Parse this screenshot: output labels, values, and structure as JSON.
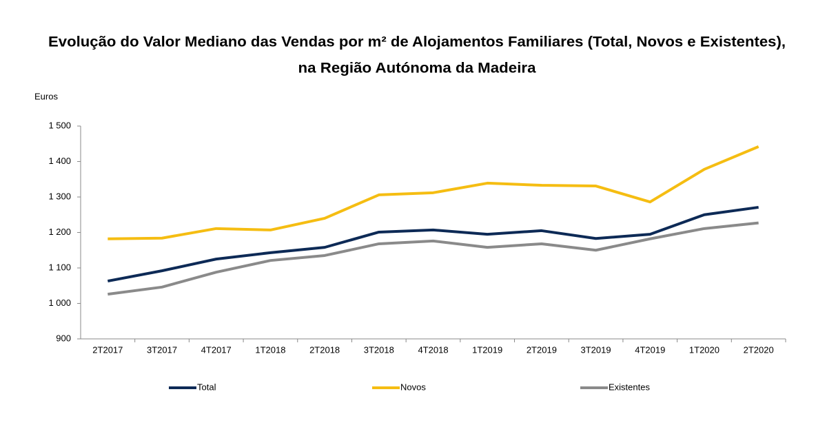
{
  "chart_data": {
    "type": "line",
    "title": [
      "Evolução do Valor Mediano das Vendas por m² de Alojamentos Familiares (Total, Novos e Existentes),",
      "na Região Autónoma da Madeira"
    ],
    "y_label": "Euros",
    "categories": [
      "2T2017",
      "3T2017",
      "4T2017",
      "1T2018",
      "2T2018",
      "3T2018",
      "4T2018",
      "1T2019",
      "2T2019",
      "3T2019",
      "4T2019",
      "1T2020",
      "2T2020"
    ],
    "series": [
      {
        "name": "Total",
        "color": "#0d2a56",
        "values": [
          1063,
          1092,
          1125,
          1143,
          1158,
          1201,
          1207,
          1195,
          1205,
          1183,
          1195,
          1250,
          1271
        ]
      },
      {
        "name": "Novos",
        "color": "#f5bd12",
        "values": [
          1182,
          1184,
          1211,
          1207,
          1240,
          1306,
          1312,
          1339,
          1333,
          1331,
          1286,
          1378,
          1442
        ]
      },
      {
        "name": "Existentes",
        "color": "#8a8a8a",
        "values": [
          1026,
          1046,
          1088,
          1121,
          1135,
          1168,
          1176,
          1158,
          1168,
          1150,
          1182,
          1211,
          1227
        ]
      }
    ],
    "ylim": [
      900,
      1500
    ],
    "yticks": [
      900,
      {
        "value": 1000,
        "label": "1 000"
      },
      {
        "value": 1100,
        "label": "1 100"
      },
      {
        "value": 1200,
        "label": "1 200"
      },
      {
        "value": 1300,
        "label": "1 300"
      },
      {
        "value": 1400,
        "label": "1 400"
      },
      {
        "value": 1500,
        "label": "1 500"
      }
    ],
    "grid": false,
    "legend": "bottom"
  }
}
